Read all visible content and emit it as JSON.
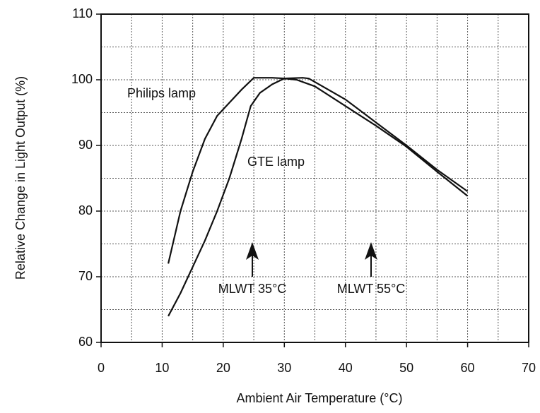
{
  "chart_data": {
    "type": "line",
    "xlabel": "Ambient Air Temperature (°C)",
    "ylabel": "Relative Change in Light Output (%)",
    "xlim": [
      0,
      70
    ],
    "xticks": [
      0,
      10,
      20,
      30,
      40,
      50,
      60,
      70
    ],
    "ylim": [
      60,
      110
    ],
    "yticks": [
      60,
      70,
      80,
      90,
      100,
      110
    ],
    "xticks_minor": [
      5,
      15,
      25,
      35,
      45,
      55,
      65
    ],
    "yticks_minor": [
      65,
      75,
      85,
      95,
      105
    ],
    "grid": true,
    "series": [
      {
        "name": "Philips lamp",
        "color": "#111111",
        "x": [
          11,
          13,
          15,
          17,
          19,
          21,
          23,
          25,
          28,
          30,
          32,
          35,
          40,
          45,
          50,
          55,
          60
        ],
        "values": [
          72,
          80,
          86,
          91,
          94.5,
          96.5,
          98.5,
          100.3,
          100.3,
          100.2,
          100,
          99,
          96,
          93,
          89.8,
          86,
          82.3
        ]
      },
      {
        "name": "GTE lamp",
        "color": "#111111",
        "x": [
          11,
          13,
          15,
          17,
          19,
          21,
          23,
          24.5,
          26,
          28,
          30,
          33,
          34,
          40,
          45,
          50,
          55,
          60
        ],
        "values": [
          64,
          67.5,
          71.5,
          75.5,
          80,
          85,
          91,
          96,
          98,
          99.3,
          100.2,
          100.3,
          100.2,
          97,
          93.5,
          90,
          86.3,
          83
        ]
      }
    ],
    "annotations": [
      "MLWT 35°C",
      "MLWT 55°C"
    ]
  }
}
